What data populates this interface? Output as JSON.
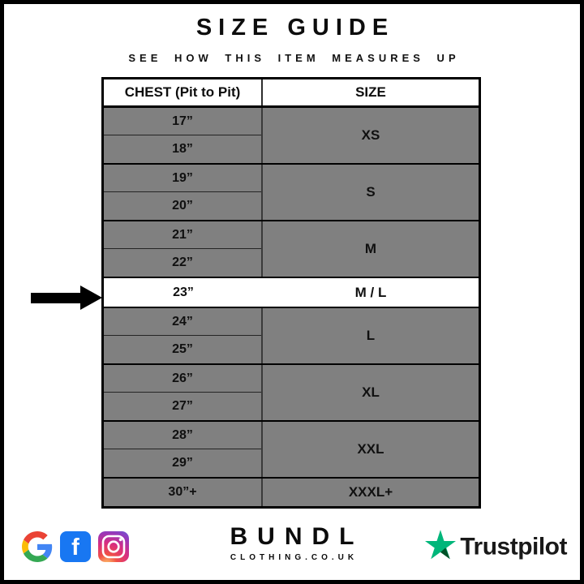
{
  "title": "SIZE GUIDE",
  "subtitle": "SEE HOW THIS ITEM MEASURES UP",
  "table": {
    "chest_header": "CHEST (Pit to Pit)",
    "size_header": "SIZE",
    "groups": [
      {
        "chest": [
          "17”",
          "18”"
        ],
        "size": "XS",
        "highlight": false
      },
      {
        "chest": [
          "19”",
          "20”"
        ],
        "size": "S",
        "highlight": false
      },
      {
        "chest": [
          "21”",
          "22”"
        ],
        "size": "M",
        "highlight": false
      },
      {
        "chest": [
          "23”"
        ],
        "size": "M / L",
        "highlight": true
      },
      {
        "chest": [
          "24”",
          "25”"
        ],
        "size": "L",
        "highlight": false
      },
      {
        "chest": [
          "26”",
          "27”"
        ],
        "size": "XL",
        "highlight": false
      },
      {
        "chest": [
          "28”",
          "29”"
        ],
        "size": "XXL",
        "highlight": false
      },
      {
        "chest": [
          "30”+"
        ],
        "size": "XXXL+",
        "highlight": false
      }
    ]
  },
  "footer": {
    "brand_name": "BUNDL",
    "brand_domain": "CLOTHING.CO.UK",
    "facebook_letter": "f",
    "trustpilot_label": "Trustpilot",
    "social_icons": [
      "google",
      "facebook",
      "instagram"
    ]
  },
  "colors": {
    "row_gray": "#808080",
    "highlight_row": "#ffffff",
    "border_black": "#000000",
    "facebook_blue": "#1877F2",
    "google_blue": "#4285F4",
    "google_red": "#EA4335",
    "google_yellow": "#FBBC05",
    "google_green": "#34A853",
    "trustpilot_green": "#00B67A",
    "trustpilot_dark_green": "#005128"
  }
}
